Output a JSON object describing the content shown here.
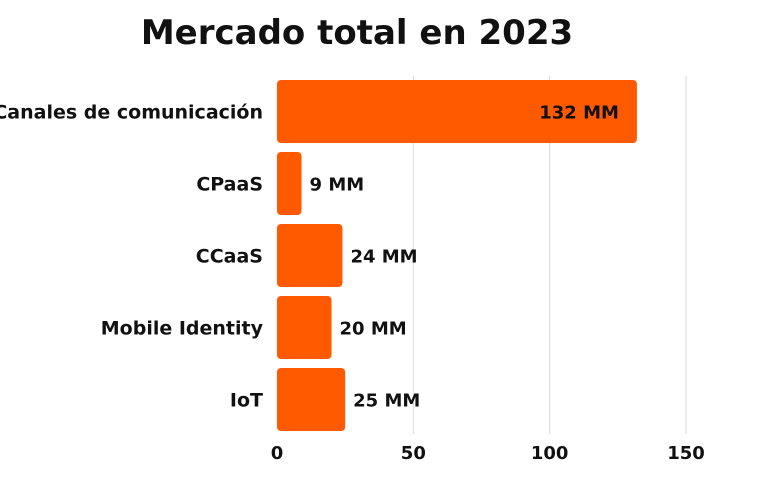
{
  "chart_data": {
    "type": "bar",
    "orientation": "horizontal",
    "title": "Mercado total en 2023",
    "categories": [
      "Canales de comunicación",
      "CPaaS",
      "CCaaS",
      "Mobile Identity",
      "IoT"
    ],
    "values": [
      132,
      9,
      24,
      20,
      25
    ],
    "data_labels": [
      "132 MM",
      "9 MM",
      "24 MM",
      "20 MM",
      "25 MM"
    ],
    "xlim": [
      0,
      150
    ],
    "xticks": [
      0,
      50,
      100,
      150
    ],
    "grid": true,
    "legend": "none",
    "bar_color": "#FF5A00"
  }
}
